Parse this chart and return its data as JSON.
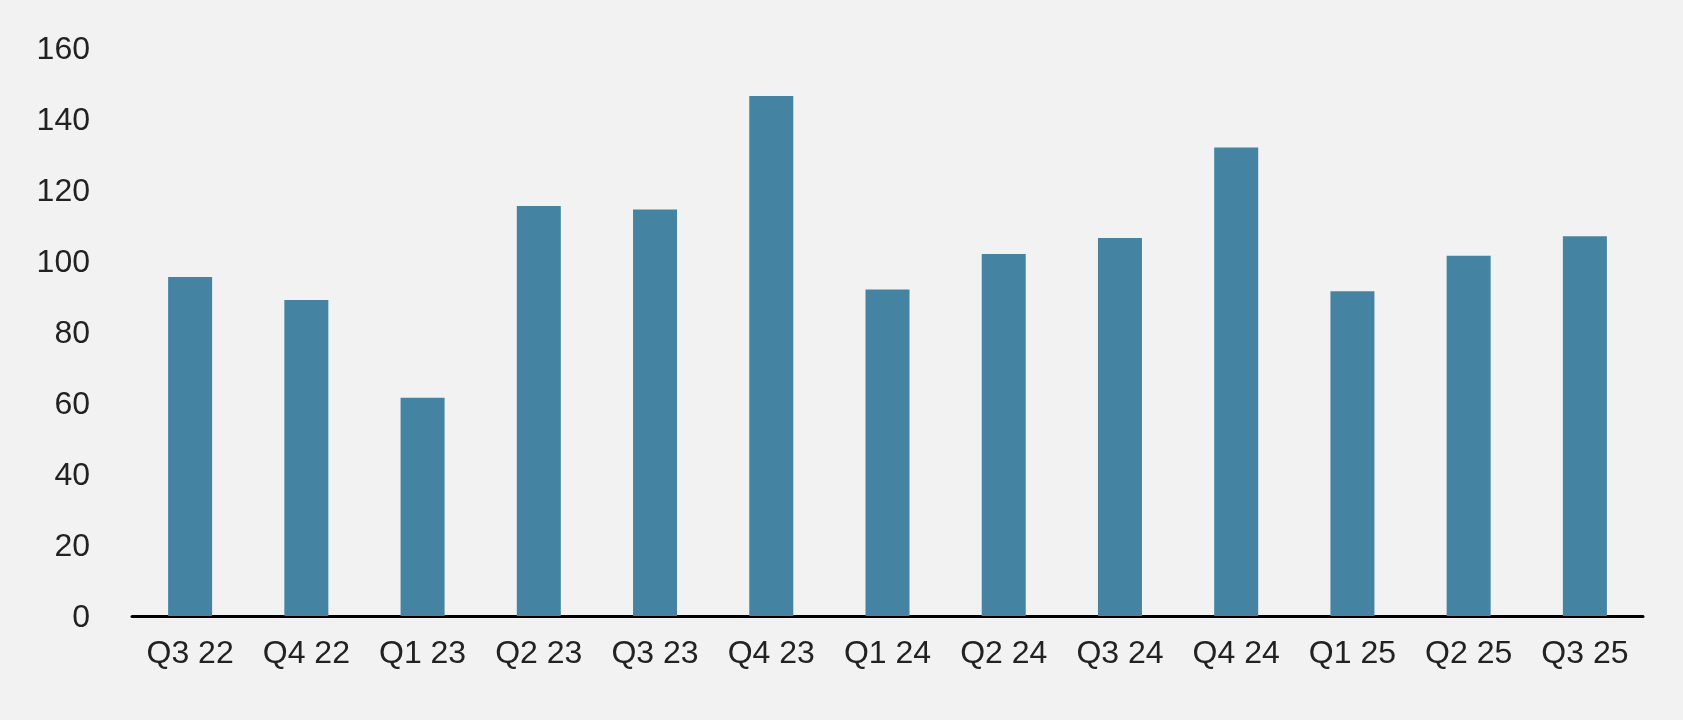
{
  "chart_data": {
    "type": "bar",
    "categories": [
      "Q3 22",
      "Q4 22",
      "Q1 23",
      "Q2 23",
      "Q3 23",
      "Q4 23",
      "Q1 24",
      "Q2 24",
      "Q3 24",
      "Q4 24",
      "Q1 25",
      "Q2 25",
      "Q3 25"
    ],
    "values": [
      95.5,
      89,
      61.5,
      115.5,
      114.5,
      146.5,
      92,
      102,
      106.5,
      132,
      91.5,
      101.5,
      107
    ],
    "color": "#4484a2",
    "ylim": [
      0,
      160
    ],
    "yticks": [
      0,
      20,
      40,
      60,
      80,
      100,
      120,
      140,
      160
    ]
  }
}
